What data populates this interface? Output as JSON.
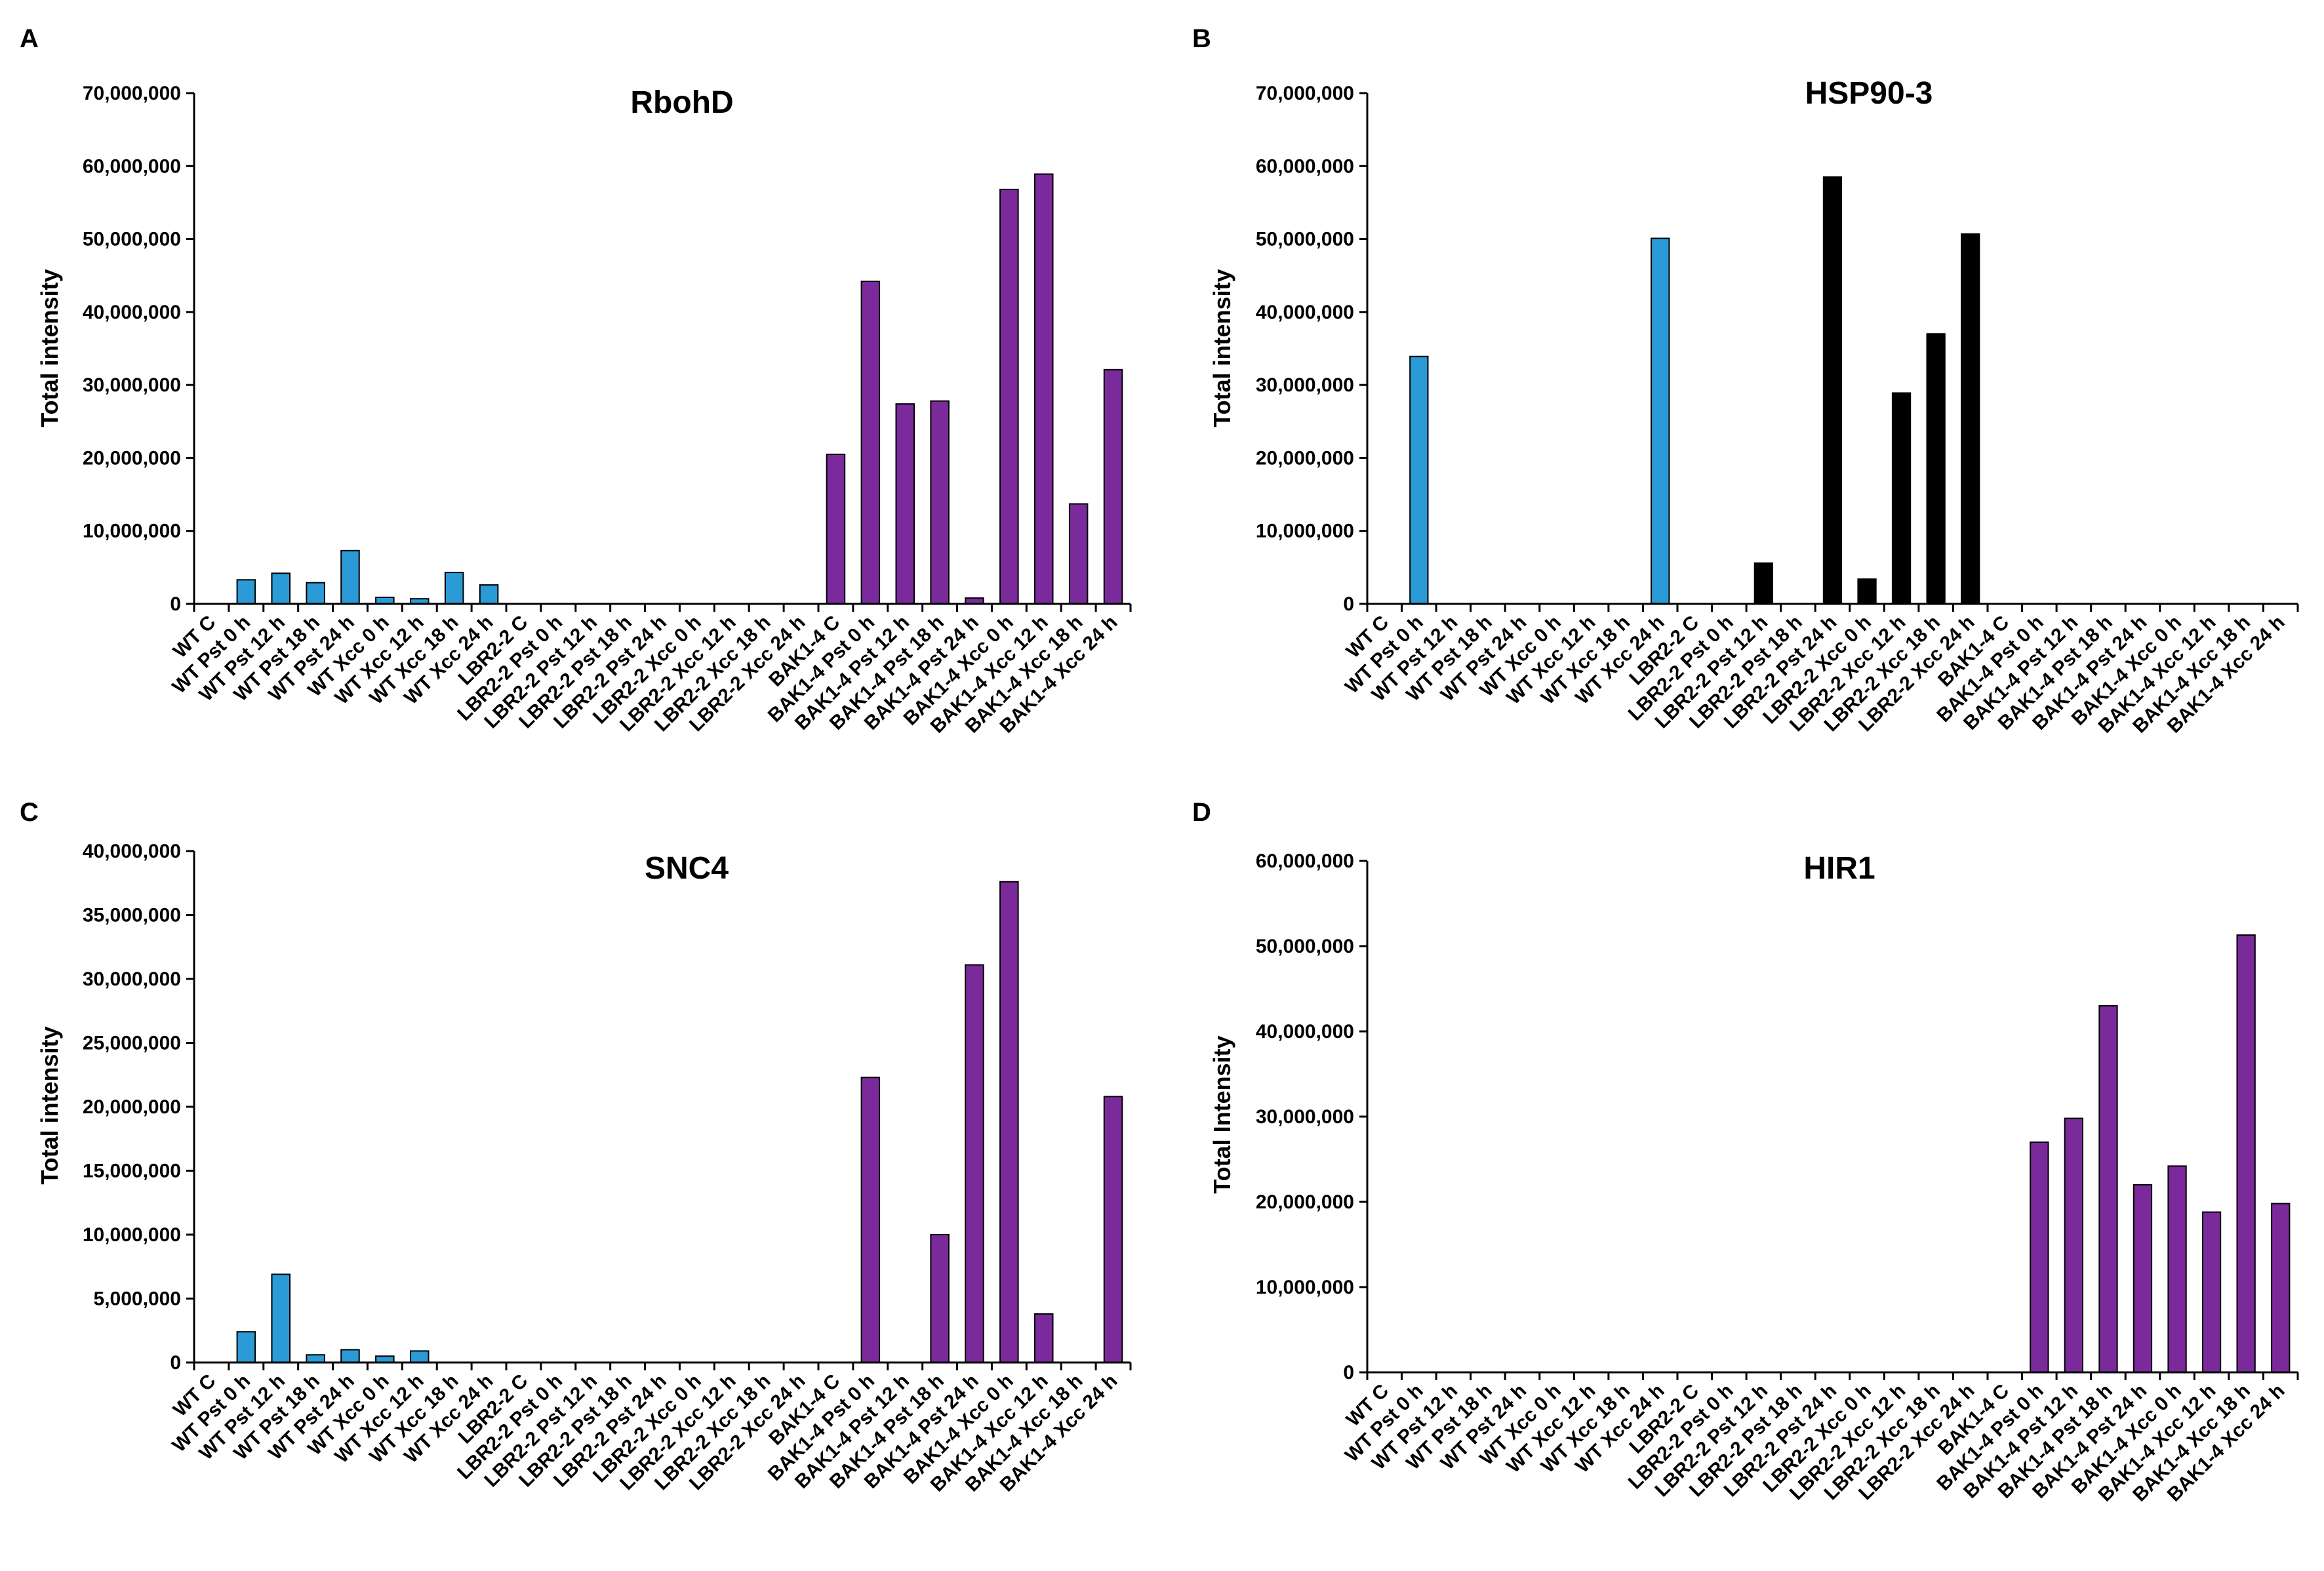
{
  "chart_data": [
    {
      "panel": "A",
      "type": "bar",
      "title": "RbohD",
      "xlabel": "",
      "ylabel": "Total intensity",
      "ylim": [
        0,
        70000000
      ],
      "yticks": [
        0,
        10000000,
        20000000,
        30000000,
        40000000,
        50000000,
        60000000,
        70000000
      ],
      "ytick_labels": [
        "0",
        "10,000,000",
        "20,000,000",
        "30,000,000",
        "40,000,000",
        "50,000,000",
        "60,000,000",
        "70,000,000"
      ],
      "categories": [
        "WT C",
        "WT Pst 0 h",
        "WT Pst 12 h",
        "WT Pst 18 h",
        "WT Pst 24 h",
        "WT Xcc 0 h",
        "WT Xcc 12 h",
        "WT Xcc 18 h",
        "WT Xcc 24 h",
        "LBR2-2 C",
        "LBR2-2 Pst 0 h",
        "LBR2-2 Pst 12 h",
        "LBR2-2 Pst 18 h",
        "LBR2-2 Pst 24 h",
        "LBR2-2 Xcc 0 h",
        "LBR2-2 Xcc 12 h",
        "LBR2-2 Xcc 18 h",
        "LBR2-2 Xcc 24 h",
        "BAK1-4 C",
        "BAK1-4 Pst 0 h",
        "BAK1-4 Pst 12 h",
        "BAK1-4 Pst 18 h",
        "BAK1-4 Pst 24 h",
        "BAK1-4 Xcc 0 h",
        "BAK1-4 Xcc 12 h",
        "BAK1-4 Xcc 18 h",
        "BAK1-4 Xcc 24 h"
      ],
      "values": [
        0,
        3300000,
        4200000,
        2900000,
        7300000,
        900000,
        700000,
        4300000,
        2600000,
        0,
        0,
        0,
        0,
        0,
        0,
        0,
        0,
        0,
        20500000,
        44200000,
        27400000,
        27800000,
        800000,
        56800000,
        58900000,
        13700000,
        32100000
      ],
      "colors": [
        "#2a9bd6",
        "#2a9bd6",
        "#2a9bd6",
        "#2a9bd6",
        "#2a9bd6",
        "#2a9bd6",
        "#2a9bd6",
        "#2a9bd6",
        "#2a9bd6",
        "#000000",
        "#000000",
        "#000000",
        "#000000",
        "#000000",
        "#000000",
        "#000000",
        "#000000",
        "#000000",
        "#7b2a9b",
        "#7b2a9b",
        "#7b2a9b",
        "#7b2a9b",
        "#7b2a9b",
        "#7b2a9b",
        "#7b2a9b",
        "#7b2a9b",
        "#7b2a9b"
      ],
      "grid": false
    },
    {
      "panel": "B",
      "type": "bar",
      "title": "HSP90-3",
      "xlabel": "",
      "ylabel": "Total intensity",
      "ylim": [
        0,
        70000000
      ],
      "yticks": [
        0,
        10000000,
        20000000,
        30000000,
        40000000,
        50000000,
        60000000,
        70000000
      ],
      "ytick_labels": [
        "0",
        "10,000,000",
        "20,000,000",
        "30,000,000",
        "40,000,000",
        "50,000,000",
        "60,000,000",
        "70,000,000"
      ],
      "categories": [
        "WT C",
        "WT Pst 0 h",
        "WT Pst 12 h",
        "WT Pst 18 h",
        "WT Pst 24 h",
        "WT Xcc 0 h",
        "WT Xcc 12 h",
        "WT Xcc 18 h",
        "WT Xcc 24 h",
        "LBR2-2 C",
        "LBR2-2 Pst 0 h",
        "LBR2-2 Pst 12 h",
        "LBR2-2 Pst 18 h",
        "LBR2-2 Pst 24 h",
        "LBR2-2 Xcc 0 h",
        "LBR2-2 Xcc 12 h",
        "LBR2-2 Xcc 18 h",
        "LBR2-2 Xcc 24 h",
        "BAK1-4 C",
        "BAK1-4 Pst 0 h",
        "BAK1-4 Pst 12 h",
        "BAK1-4 Pst 18 h",
        "BAK1-4 Pst 24 h",
        "BAK1-4 Xcc 0 h",
        "BAK1-4 Xcc 12 h",
        "BAK1-4 Xcc 18 h",
        "BAK1-4 Xcc 24 h"
      ],
      "values": [
        0,
        33900000,
        0,
        0,
        0,
        0,
        0,
        0,
        50100000,
        0,
        0,
        5600000,
        0,
        58500000,
        3400000,
        28900000,
        37000000,
        50700000,
        0,
        0,
        0,
        0,
        0,
        0,
        0,
        0,
        0
      ],
      "colors": [
        "#2a9bd6",
        "#2a9bd6",
        "#2a9bd6",
        "#2a9bd6",
        "#2a9bd6",
        "#2a9bd6",
        "#2a9bd6",
        "#2a9bd6",
        "#2a9bd6",
        "#000000",
        "#000000",
        "#000000",
        "#000000",
        "#000000",
        "#000000",
        "#000000",
        "#000000",
        "#000000",
        "#7b2a9b",
        "#7b2a9b",
        "#7b2a9b",
        "#7b2a9b",
        "#7b2a9b",
        "#7b2a9b",
        "#7b2a9b",
        "#7b2a9b",
        "#7b2a9b"
      ],
      "grid": false
    },
    {
      "panel": "C",
      "type": "bar",
      "title": "SNC4",
      "xlabel": "",
      "ylabel": "Total intensity",
      "ylim": [
        0,
        40000000
      ],
      "yticks": [
        0,
        5000000,
        10000000,
        15000000,
        20000000,
        25000000,
        30000000,
        35000000,
        40000000
      ],
      "ytick_labels": [
        "0",
        "5,000,000",
        "10,000,000",
        "15,000,000",
        "20,000,000",
        "25,000,000",
        "30,000,000",
        "35,000,000",
        "40,000,000"
      ],
      "categories": [
        "WT C",
        "WT Pst 0 h",
        "WT Pst 12 h",
        "WT Pst 18 h",
        "WT Pst 24 h",
        "WT Xcc 0 h",
        "WT Xcc 12 h",
        "WT Xcc 18 h",
        "WT Xcc 24 h",
        "LBR2-2 C",
        "LBR2-2 Pst 0 h",
        "LBR2-2 Pst 12 h",
        "LBR2-2 Pst 18 h",
        "LBR2-2 Pst 24 h",
        "LBR2-2 Xcc 0 h",
        "LBR2-2 Xcc 12 h",
        "LBR2-2 Xcc 18 h",
        "LBR2-2 Xcc 24 h",
        "BAK1-4 C",
        "BAK1-4 Pst 0 h",
        "BAK1-4 Pst 12 h",
        "BAK1-4 Pst 18 h",
        "BAK1-4 Pst 24 h",
        "BAK1-4 Xcc 0 h",
        "BAK1-4 Xcc 12 h",
        "BAK1-4 Xcc 18 h",
        "BAK1-4 Xcc 24 h"
      ],
      "values": [
        0,
        2400000,
        6900000,
        600000,
        1000000,
        500000,
        900000,
        0,
        0,
        0,
        0,
        0,
        0,
        0,
        0,
        0,
        0,
        0,
        0,
        22300000,
        0,
        10000000,
        31100000,
        37600000,
        3800000,
        0,
        20800000
      ],
      "colors": [
        "#2a9bd6",
        "#2a9bd6",
        "#2a9bd6",
        "#2a9bd6",
        "#2a9bd6",
        "#2a9bd6",
        "#2a9bd6",
        "#2a9bd6",
        "#2a9bd6",
        "#000000",
        "#000000",
        "#000000",
        "#000000",
        "#000000",
        "#000000",
        "#000000",
        "#000000",
        "#000000",
        "#7b2a9b",
        "#7b2a9b",
        "#7b2a9b",
        "#7b2a9b",
        "#7b2a9b",
        "#7b2a9b",
        "#7b2a9b",
        "#7b2a9b",
        "#7b2a9b"
      ],
      "grid": false
    },
    {
      "panel": "D",
      "type": "bar",
      "title": "HIR1",
      "xlabel": "",
      "ylabel": "Total Intensity",
      "ylim": [
        0,
        60000000
      ],
      "yticks": [
        0,
        10000000,
        20000000,
        30000000,
        40000000,
        50000000,
        60000000
      ],
      "ytick_labels": [
        "0",
        "10,000,000",
        "20,000,000",
        "30,000,000",
        "40,000,000",
        "50,000,000",
        "60,000,000"
      ],
      "categories": [
        "WT C",
        "WT Pst 0 h",
        "WT Pst 12 h",
        "WT Pst 18 h",
        "WT Pst 24 h",
        "WT Xcc 0 h",
        "WT Xcc 12 h",
        "WT Xcc 18 h",
        "WT Xcc 24 h",
        "LBR2-2 C",
        "LBR2-2 Pst 0 h",
        "LBR2-2 Pst 12 h",
        "LBR2-2 Pst 18 h",
        "LBR2-2 Pst 24 h",
        "LBR2-2 Xcc 0 h",
        "LBR2-2 Xcc 12 h",
        "LBR2-2 Xcc 18 h",
        "LBR2-2 Xcc 24 h",
        "BAK1-4 C",
        "BAK1-4 Pst 0 h",
        "BAK1-4 Pst 12 h",
        "BAK1-4 Pst 18 h",
        "BAK1-4 Pst 24 h",
        "BAK1-4 Xcc 0 h",
        "BAK1-4 Xcc 12 h",
        "BAK1-4 Xcc 18 h",
        "BAK1-4 Xcc 24 h"
      ],
      "values": [
        0,
        0,
        0,
        0,
        0,
        0,
        0,
        0,
        0,
        0,
        0,
        0,
        0,
        0,
        0,
        0,
        0,
        0,
        0,
        27000000,
        29800000,
        43000000,
        22000000,
        24200000,
        18800000,
        51300000,
        19800000
      ],
      "colors": [
        "#2a9bd6",
        "#2a9bd6",
        "#2a9bd6",
        "#2a9bd6",
        "#2a9bd6",
        "#2a9bd6",
        "#2a9bd6",
        "#2a9bd6",
        "#2a9bd6",
        "#000000",
        "#000000",
        "#000000",
        "#000000",
        "#000000",
        "#000000",
        "#000000",
        "#000000",
        "#000000",
        "#7b2a9b",
        "#7b2a9b",
        "#7b2a9b",
        "#7b2a9b",
        "#7b2a9b",
        "#7b2a9b",
        "#7b2a9b",
        "#7b2a9b",
        "#7b2a9b"
      ],
      "grid": false
    }
  ]
}
